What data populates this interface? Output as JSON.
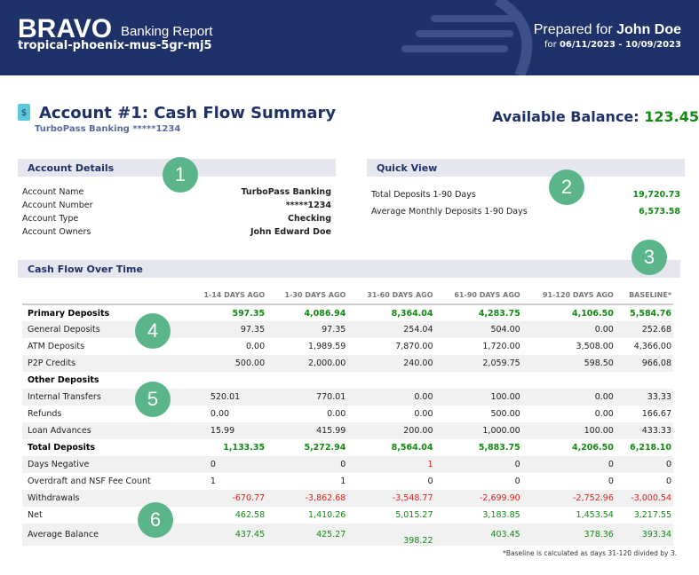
{
  "header": {
    "brand": "BRAVO",
    "brand_sub": "Banking Report",
    "report_id": "tropical-phoenix-mus-5gr-mj5",
    "prepared_prefix": "Prepared for",
    "prepared_name": "John Doe",
    "dates_prefix": "for",
    "dates": "06/11/2023 - 10/09/2023"
  },
  "title": {
    "icon": "document-dollar-icon",
    "text": "Account #1: Cash Flow Summary",
    "subtitle": "TurboPass Banking *****1234",
    "balance_label": "Available Balance:",
    "balance_value": "123.45"
  },
  "account_details": {
    "heading": "Account Details",
    "rows": [
      {
        "label": "Account Name",
        "value": "TurboPass Banking"
      },
      {
        "label": "Account Number",
        "value": "*****1234"
      },
      {
        "label": "Account Type",
        "value": "Checking"
      },
      {
        "label": "Account Owners",
        "value": "John Edward Doe"
      }
    ]
  },
  "quick_view": {
    "heading": "Quick View",
    "rows": [
      {
        "label": "Total Deposits 1-90 Days",
        "value": "19,720.73"
      },
      {
        "label": "Average Monthly Deposits 1-90 Days",
        "value": "6,573.58"
      }
    ]
  },
  "cash_flow": {
    "heading": "Cash Flow Over Time",
    "columns": [
      "",
      "1-14 DAYS AGO",
      "1-30 DAYS AGO",
      "31-60 DAYS AGO",
      "61-90 DAYS AGO",
      "91-120 DAYS AGO",
      "BASELINE*"
    ],
    "rows": [
      {
        "cells": [
          "Primary Deposits",
          "597.35",
          "4,086.94",
          "8,364.04",
          "4,283.75",
          "4,106.50",
          "5,584.76"
        ],
        "style": "bold",
        "color": "green"
      },
      {
        "cells": [
          "General Deposits",
          "97.35",
          "97.35",
          "254.04",
          "504.00",
          "0.00",
          "252.68"
        ]
      },
      {
        "cells": [
          "ATM Deposits",
          "0.00",
          "1,989.59",
          "7,870.00",
          "1,720.00",
          "3,508.00",
          "4,366.00"
        ]
      },
      {
        "cells": [
          "P2P Credits",
          "500.00",
          "2,000.00",
          "240.00",
          "2,059.75",
          "598.50",
          "966.08"
        ]
      },
      {
        "cells": [
          "Other Deposits",
          "",
          "",
          "",
          "",
          "",
          ""
        ],
        "style": "bold"
      },
      {
        "cells": [
          "Internal Transfers",
          "520.01",
          "770.01",
          "0.00",
          "100.00",
          "0.00",
          "33.33"
        ],
        "left": true
      },
      {
        "cells": [
          "Refunds",
          "0.00",
          "0.00",
          "0.00",
          "500.00",
          "0.00",
          "166.67"
        ],
        "left": true
      },
      {
        "cells": [
          "Loan Advances",
          "15.99",
          "415.99",
          "200.00",
          "1,000.00",
          "100.00",
          "433.33"
        ],
        "left": true
      },
      {
        "cells": [
          "Total Deposits",
          "1,133.35",
          "5,272.94",
          "8,564.04",
          "5,883.75",
          "4,206.50",
          "6,218.10"
        ],
        "style": "bold",
        "color": "green"
      },
      {
        "cells": [
          "Days Negative",
          "0",
          "0",
          "1",
          "0",
          "0",
          "0"
        ],
        "left": true,
        "red_cols": [
          3
        ]
      },
      {
        "cells": [
          "Overdraft and NSF Fee Count",
          "1",
          "1",
          "0",
          "0",
          "0",
          "0"
        ],
        "left": true
      },
      {
        "cells": [
          "Withdrawals",
          "-670.77",
          "-3,862.68",
          "-3,548.77",
          "-2,699.90",
          "-2,752.96",
          "-3,000.54"
        ],
        "color": "red"
      },
      {
        "cells": [
          "Net",
          "462.58",
          "1,410.26",
          "5,015.27",
          "3,183.85",
          "1,453.54",
          "3,217.55"
        ],
        "color": "green"
      },
      {
        "cells": [
          "Average Balance",
          "437.45",
          "425.27",
          "398.22",
          "403.45",
          "378.36",
          "393.34"
        ],
        "color": "green"
      }
    ],
    "footnote": "*Baseline is calculated as days 31-120 divided by 3."
  },
  "badges": [
    "1",
    "2",
    "3",
    "4",
    "5",
    "6"
  ],
  "colors": {
    "header": "#1e3168",
    "positive": "#138a13",
    "negative": "#e0201c",
    "badge": "#5bb58a"
  }
}
